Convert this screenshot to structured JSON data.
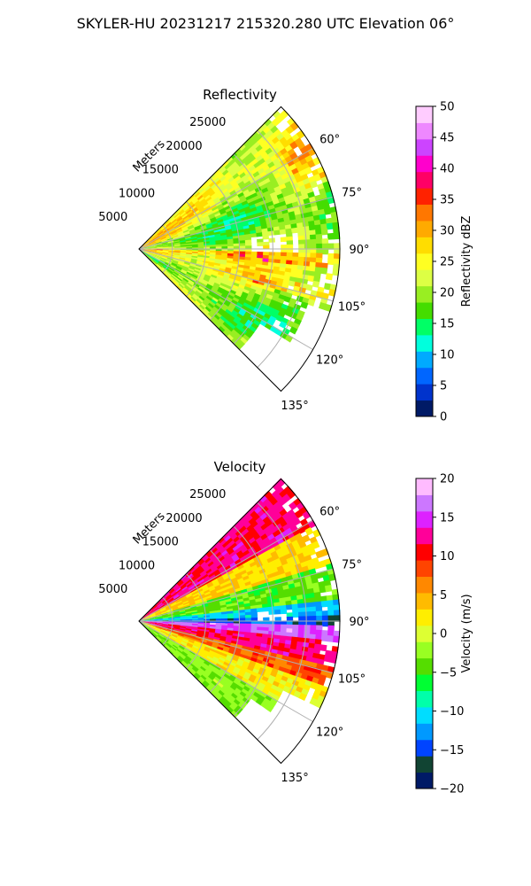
{
  "suptitle": "SKYLER-HU  20231217  215320.280 UTC Elevation 06°",
  "chart_data": [
    {
      "type": "heatmap",
      "projection": "polar-sector",
      "title": "Reflectivity",
      "radial_label": "Meters",
      "radial_ticks": [
        5000,
        10000,
        15000,
        20000,
        25000
      ],
      "radial_tick_labels": [
        "5000",
        "10000",
        "15000",
        "20000",
        "25000"
      ],
      "radial_range": [
        0,
        30000
      ],
      "angle_ticks": [
        60,
        75,
        90,
        105,
        120,
        135
      ],
      "angle_tick_labels": [
        "60°",
        "75°",
        "90°",
        "105°",
        "120°",
        "135°"
      ],
      "angle_range": [
        45,
        135
      ],
      "grid": true,
      "colorbar": {
        "label": "Reflectivity dBZ",
        "range": [
          0,
          50
        ],
        "ticks": [
          0,
          5,
          10,
          15,
          20,
          25,
          30,
          35,
          40,
          45,
          50
        ],
        "tick_labels": [
          "0",
          "5",
          "10",
          "15",
          "20",
          "25",
          "30",
          "35",
          "40",
          "45",
          "50"
        ],
        "palette": [
          "#001a66",
          "#0033cc",
          "#0066ff",
          "#00aaff",
          "#00ffdd",
          "#00ff66",
          "#44dd00",
          "#99ee22",
          "#ddff44",
          "#ffff22",
          "#ffdd00",
          "#ffaa00",
          "#ff7700",
          "#ff2200",
          "#ff0066",
          "#ff00cc",
          "#cc44ff",
          "#ee88ff",
          "#ffccff"
        ]
      }
    },
    {
      "type": "heatmap",
      "projection": "polar-sector",
      "title": "Velocity",
      "radial_label": "Meters",
      "radial_ticks": [
        5000,
        10000,
        15000,
        20000,
        25000
      ],
      "radial_tick_labels": [
        "5000",
        "10000",
        "15000",
        "20000",
        "25000"
      ],
      "radial_range": [
        0,
        30000
      ],
      "angle_ticks": [
        60,
        75,
        90,
        105,
        120,
        135
      ],
      "angle_tick_labels": [
        "60°",
        "75°",
        "90°",
        "105°",
        "120°",
        "135°"
      ],
      "angle_range": [
        45,
        135
      ],
      "grid": true,
      "colorbar": {
        "label": "Velocity (m/s)",
        "range": [
          -20,
          20
        ],
        "ticks": [
          -20,
          -15,
          -10,
          -5,
          0,
          5,
          10,
          15,
          20
        ],
        "tick_labels": [
          "−20",
          "−15",
          "−10",
          "−5",
          "0",
          "5",
          "10",
          "15",
          "20"
        ],
        "palette": [
          "#001a66",
          "#114433",
          "#0044ff",
          "#0099ff",
          "#00ddff",
          "#00ffaa",
          "#00ff33",
          "#55dd00",
          "#99ff22",
          "#ddff33",
          "#ffee00",
          "#ffbb00",
          "#ff8800",
          "#ff4400",
          "#ff0000",
          "#ff0099",
          "#dd22ff",
          "#cc77ff",
          "#ffbbff"
        ]
      }
    }
  ]
}
